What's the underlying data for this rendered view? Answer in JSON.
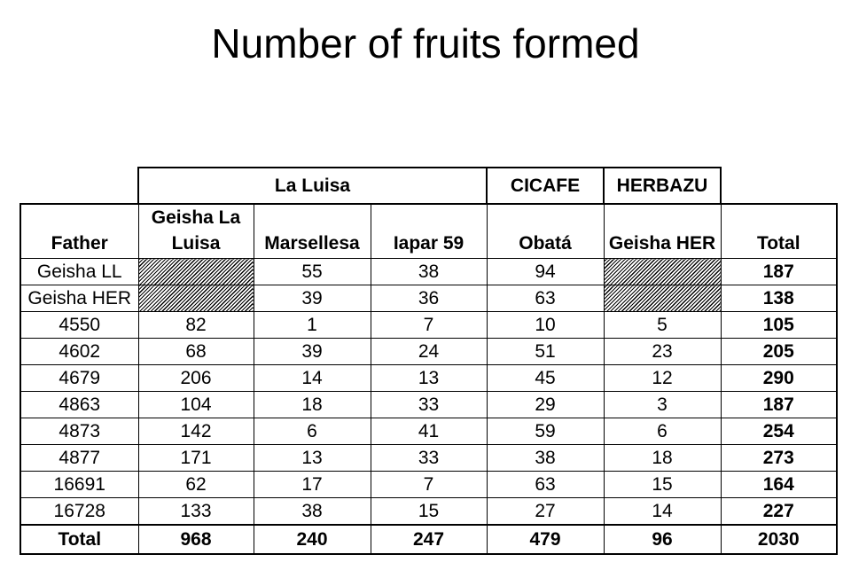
{
  "title": "Number of fruits formed",
  "groups": {
    "la_luisa": "La Luisa",
    "cicafe": "CICAFE",
    "herbazu": "HERBAZU"
  },
  "columns": {
    "father": "Father",
    "geisha_la_luisa": "Geisha La Luisa",
    "marsellesa": "Marsellesa",
    "iapar59": "Iapar 59",
    "obata": "Obatá",
    "geisha_her": "Geisha HER",
    "total": "Total"
  },
  "rows": [
    {
      "father": "Geisha LL",
      "geisha_la_luisa": "",
      "marsellesa": "55",
      "iapar59": "38",
      "obata": "94",
      "geisha_her": "",
      "total": "187"
    },
    {
      "father": "Geisha HER",
      "geisha_la_luisa": "",
      "marsellesa": "39",
      "iapar59": "36",
      "obata": "63",
      "geisha_her": "",
      "total": "138"
    },
    {
      "father": "4550",
      "geisha_la_luisa": "82",
      "marsellesa": "1",
      "iapar59": "7",
      "obata": "10",
      "geisha_her": "5",
      "total": "105"
    },
    {
      "father": "4602",
      "geisha_la_luisa": "68",
      "marsellesa": "39",
      "iapar59": "24",
      "obata": "51",
      "geisha_her": "23",
      "total": "205"
    },
    {
      "father": "4679",
      "geisha_la_luisa": "206",
      "marsellesa": "14",
      "iapar59": "13",
      "obata": "45",
      "geisha_her": "12",
      "total": "290"
    },
    {
      "father": "4863",
      "geisha_la_luisa": "104",
      "marsellesa": "18",
      "iapar59": "33",
      "obata": "29",
      "geisha_her": "3",
      "total": "187"
    },
    {
      "father": "4873",
      "geisha_la_luisa": "142",
      "marsellesa": "6",
      "iapar59": "41",
      "obata": "59",
      "geisha_her": "6",
      "total": "254"
    },
    {
      "father": "4877",
      "geisha_la_luisa": "171",
      "marsellesa": "13",
      "iapar59": "33",
      "obata": "38",
      "geisha_her": "18",
      "total": "273"
    },
    {
      "father": "16691",
      "geisha_la_luisa": "62",
      "marsellesa": "17",
      "iapar59": "7",
      "obata": "63",
      "geisha_her": "15",
      "total": "164"
    },
    {
      "father": "16728",
      "geisha_la_luisa": "133",
      "marsellesa": "38",
      "iapar59": "15",
      "obata": "27",
      "geisha_her": "14",
      "total": "227"
    }
  ],
  "totals": {
    "label": "Total",
    "geisha_la_luisa": "968",
    "marsellesa": "240",
    "iapar59": "247",
    "obata": "479",
    "geisha_her": "96",
    "total": "2030"
  }
}
